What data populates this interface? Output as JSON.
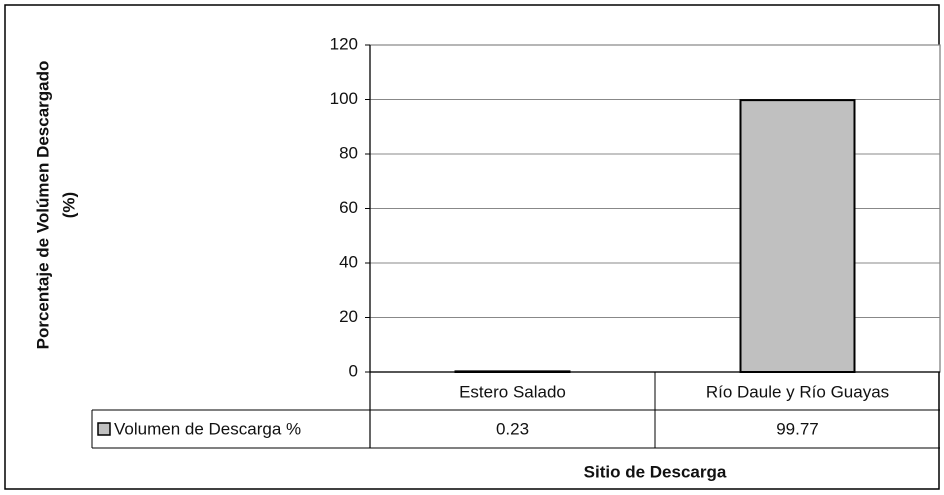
{
  "chart_data": {
    "type": "bar",
    "y_label_lines": [
      "Porcentaje de Volúmen Descargado",
      "(%)"
    ],
    "x_label": "Sitio de Descarga",
    "categories": [
      "Estero Salado",
      "Río Daule y Río Guayas"
    ],
    "series": [
      {
        "name": "Volumen de Descarga %",
        "color": "#c0c0c0",
        "values": [
          0.23,
          99.77
        ]
      }
    ],
    "ylim": [
      0,
      120
    ],
    "yticks": [
      0,
      20,
      40,
      60,
      80,
      100,
      120
    ],
    "grid": true,
    "data_table": true
  }
}
